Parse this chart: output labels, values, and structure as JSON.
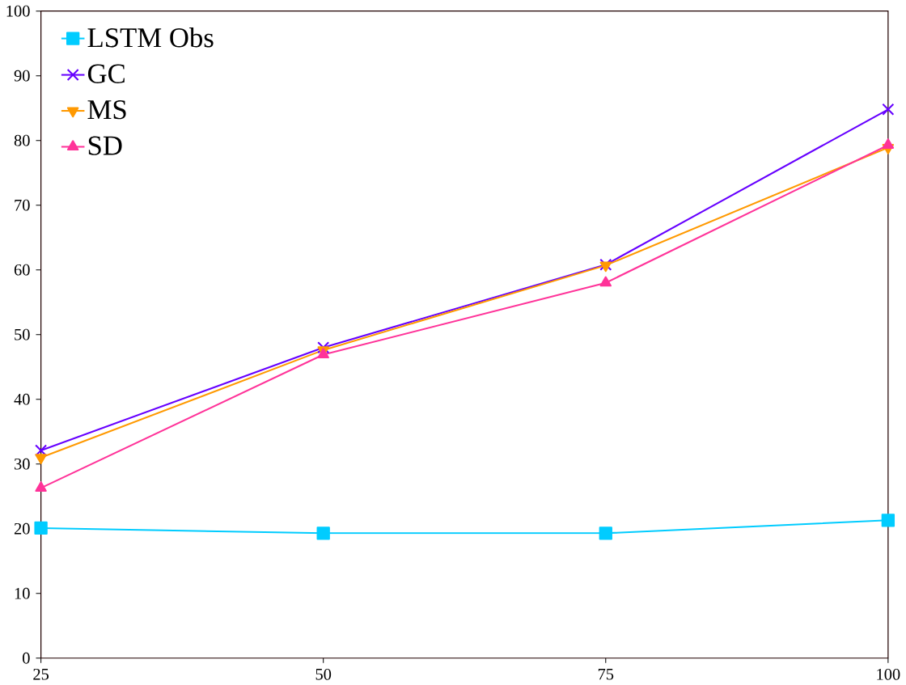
{
  "chart_data": {
    "type": "line",
    "x": [
      25,
      50,
      75,
      100
    ],
    "xlim": [
      25,
      100
    ],
    "xticks": [
      25,
      50,
      75,
      100
    ],
    "ylim": [
      0,
      100
    ],
    "yticks": [
      0,
      10,
      20,
      30,
      40,
      50,
      60,
      70,
      80,
      90,
      100
    ],
    "grid": false,
    "legend": "top left",
    "series": [
      {
        "name": "LSTM Obs",
        "color": "#00ccff",
        "marker": "square",
        "values": [
          20.1,
          19.3,
          19.3,
          21.3
        ]
      },
      {
        "name": "GC",
        "color": "#6600ff",
        "marker": "cross",
        "values": [
          32.1,
          48.0,
          60.8,
          84.8
        ]
      },
      {
        "name": "MS",
        "color": "#ff9900",
        "marker": "triangle-down",
        "values": [
          31.0,
          47.6,
          60.7,
          78.9
        ]
      },
      {
        "name": "SD",
        "color": "#ff3399",
        "marker": "triangle",
        "values": [
          26.3,
          46.9,
          58.0,
          79.3
        ]
      }
    ]
  }
}
